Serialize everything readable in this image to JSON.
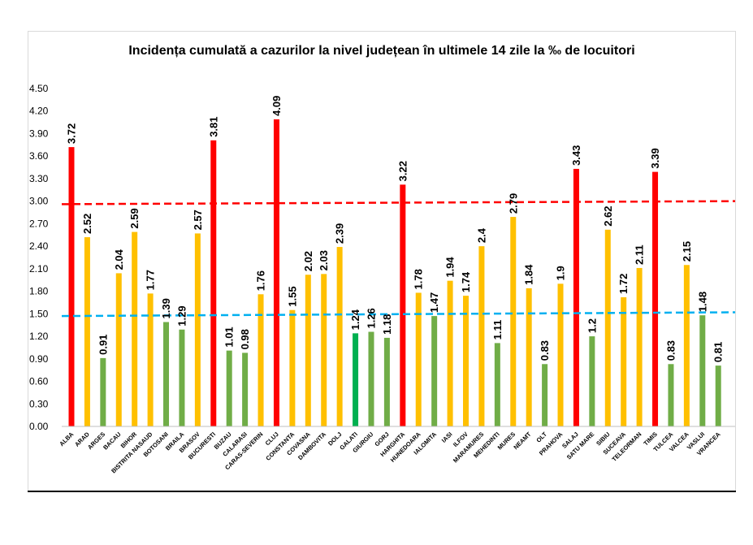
{
  "chart_data": {
    "type": "bar",
    "title": "Incidența cumulată a cazurilor la nivel județean în ultimele 14 zile la ‰ de locuitori",
    "xlabel": "",
    "ylabel": "",
    "ylim": [
      0,
      4.5
    ],
    "yticks": [
      "0.00",
      "0.30",
      "0.60",
      "0.90",
      "1.20",
      "1.50",
      "1.80",
      "2.10",
      "2.40",
      "2.70",
      "3.00",
      "3.30",
      "3.60",
      "3.90",
      "4.20",
      "4.50"
    ],
    "grid": false,
    "categories": [
      "ALBA",
      "ARAD",
      "ARGES",
      "BACAU",
      "BIHOR",
      "BISTRITA NASAUD",
      "BOTOSANI",
      "BRAILA",
      "BRASOV",
      "BUCURESTI",
      "BUZAU",
      "CALARASI",
      "CARAS-SEVERIN",
      "CLUJ",
      "CONSTANTA",
      "COVASNA",
      "DAMBOVITA",
      "DOLJ",
      "GALATI",
      "GIURGIU",
      "GORJ",
      "HARGHITA",
      "HUNEDOARA",
      "IALOMITA",
      "IASI",
      "ILFOV",
      "MARAMURES",
      "MEHEDINTI",
      "MURES",
      "NEAMT",
      "OLT",
      "PRAHOVA",
      "SALAJ",
      "SATU MARE",
      "SIBIU",
      "SUCEAVA",
      "TELEORMAN",
      "TIMIS",
      "TULCEA",
      "VALCEA",
      "VASLUI",
      "VRANCEA"
    ],
    "values": [
      3.72,
      2.52,
      0.91,
      2.04,
      2.59,
      1.77,
      1.39,
      1.29,
      2.57,
      3.81,
      1.01,
      0.98,
      1.76,
      4.09,
      1.55,
      2.02,
      2.03,
      2.39,
      1.24,
      1.26,
      1.18,
      3.22,
      1.78,
      1.47,
      1.94,
      1.74,
      2.4,
      1.11,
      2.79,
      1.84,
      0.83,
      1.9,
      3.43,
      1.2,
      2.62,
      1.72,
      2.11,
      3.39,
      0.83,
      2.15,
      1.48,
      0.81
    ],
    "value_labels": [
      "3.72",
      "2.52",
      "0.91",
      "2.04",
      "2.59",
      "1.77",
      "1.39",
      "1.29",
      "2.57",
      "3.81",
      "1.01",
      "0.98",
      "1.76",
      "4.09",
      "1.55",
      "2.02",
      "2.03",
      "2.39",
      "1.24",
      "1.26",
      "1.18",
      "3.22",
      "1.78",
      "1.47",
      "1.94",
      "1.74",
      "2.4",
      "1.11",
      "2.79",
      "1.84",
      "0.83",
      "1.9",
      "3.43",
      "1.2",
      "2.62",
      "1.72",
      "2.11",
      "3.39",
      "0.83",
      "2.15",
      "1.48",
      "0.81"
    ],
    "colors": {
      "red": "#ff0000",
      "amber": "#ffc000",
      "green": "#70ad47",
      "galati_green": "#00b050",
      "red_line": "#ff0000",
      "blue_line": "#00b0f0"
    },
    "bar_colors": [
      "red",
      "amber",
      "green",
      "amber",
      "amber",
      "amber",
      "green",
      "green",
      "amber",
      "red",
      "green",
      "green",
      "amber",
      "red",
      "amber",
      "amber",
      "amber",
      "amber",
      "galati_green",
      "green",
      "green",
      "red",
      "amber",
      "green",
      "amber",
      "amber",
      "amber",
      "green",
      "amber",
      "amber",
      "green",
      "amber",
      "red",
      "green",
      "amber",
      "amber",
      "amber",
      "red",
      "green",
      "amber",
      "green",
      "green"
    ],
    "reference_lines": [
      {
        "color": "red_line",
        "style": "dashed",
        "y_start": 2.96,
        "y_end": 3.0
      },
      {
        "color": "blue_line",
        "style": "dashed",
        "y_start": 1.47,
        "y_end": 1.52
      }
    ]
  }
}
